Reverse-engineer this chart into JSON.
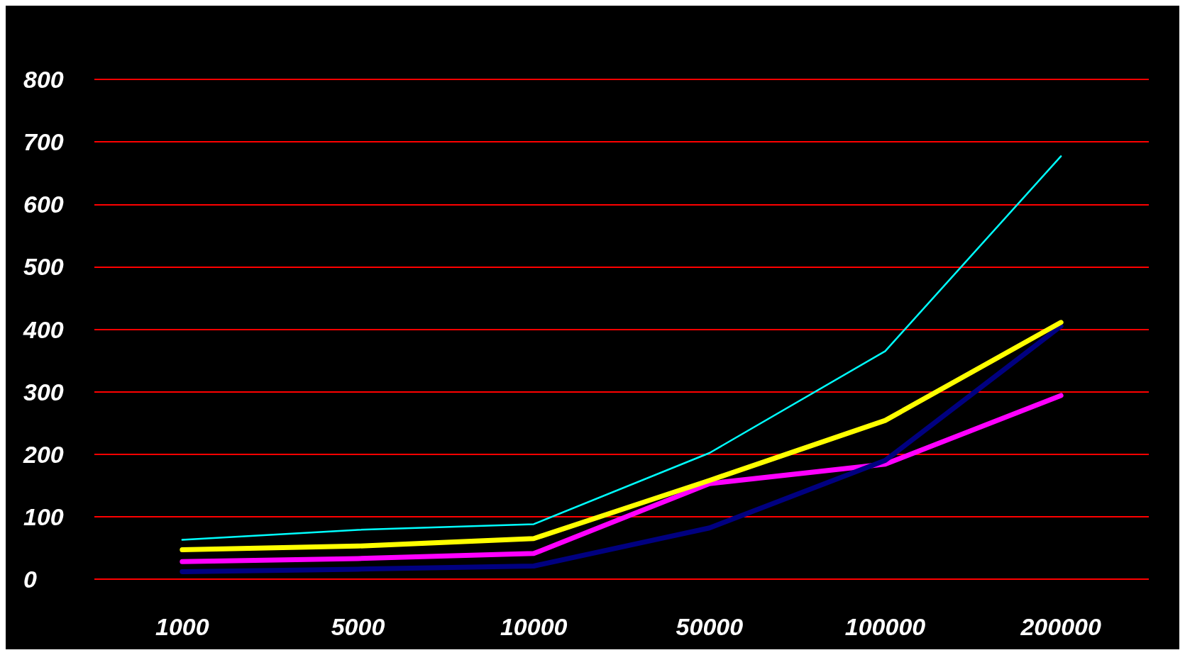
{
  "chart_data": {
    "type": "line",
    "categories": [
      "1000",
      "5000",
      "10000",
      "50000",
      "100000",
      "200000"
    ],
    "series": [
      {
        "color": "#00ffff",
        "values": [
          63,
          79,
          88,
          202,
          365,
          677
        ]
      },
      {
        "color": "#ffff00",
        "values": [
          47,
          53,
          65,
          158,
          254,
          411
        ]
      },
      {
        "color": "#000080",
        "values": [
          12,
          16,
          21,
          82,
          190,
          405
        ]
      },
      {
        "color": "#ff00ff",
        "values": [
          28,
          33,
          41,
          153,
          184,
          294
        ]
      }
    ],
    "ylim": [
      0,
      800
    ],
    "yticks": [
      0,
      100,
      200,
      300,
      400,
      500,
      600,
      700,
      800
    ],
    "grid": "y",
    "marker": "none",
    "line_style": "solid"
  }
}
